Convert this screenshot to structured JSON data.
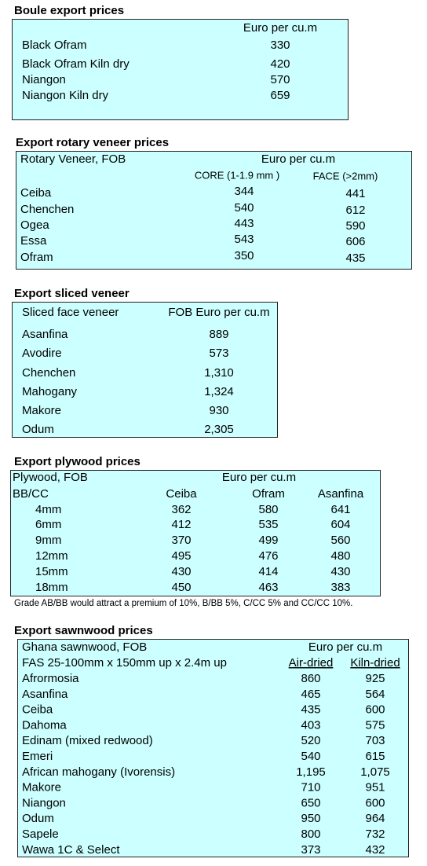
{
  "boule": {
    "title": "Boule export prices",
    "header": "Euro per cu.m",
    "rows": [
      [
        "Black Ofram",
        "330"
      ],
      [
        "Black Ofram  Kiln dry",
        "420"
      ],
      [
        "Niangon",
        "570"
      ],
      [
        "Niangon Kiln dry",
        "659"
      ]
    ]
  },
  "rotary": {
    "title": "Export rotary veneer prices",
    "header": [
      "Rotary Veneer,  FOB",
      "Euro  per cu.m"
    ],
    "columns": [
      "CORE (1-1.9 mm )",
      "FACE (>2mm)"
    ],
    "rows": [
      [
        "Ceiba",
        "344",
        "441"
      ],
      [
        "Chenchen",
        "540",
        "612"
      ],
      [
        "Ogea",
        "443",
        "590"
      ],
      [
        "Essa",
        "543",
        "606"
      ],
      [
        "Ofram",
        "350",
        "435"
      ]
    ]
  },
  "sliced": {
    "title": "Export sliced veneer",
    "header": [
      "Sliced face veneer",
      "FOB Euro per cu.m"
    ],
    "rows": [
      [
        "Asanfina",
        "889"
      ],
      [
        "Avodire",
        "573"
      ],
      [
        "Chenchen",
        "1,310"
      ],
      [
        "Mahogany",
        "1,324"
      ],
      [
        "Makore",
        "930"
      ],
      [
        "Odum",
        "2,305"
      ]
    ]
  },
  "plywood": {
    "title": "Export plywood prices",
    "header": [
      "Plywood, FOB",
      "Euro per cu.m"
    ],
    "columns": [
      "BB/CC",
      "Ceiba",
      "Ofram",
      "Asanfina"
    ],
    "rows": [
      [
        "4mm",
        "362",
        "580",
        "641"
      ],
      [
        "6mm",
        "412",
        "535",
        "604"
      ],
      [
        "9mm",
        "370",
        "499",
        "560"
      ],
      [
        "12mm",
        "495",
        "476",
        "480"
      ],
      [
        "15mm",
        "430",
        "414",
        "430"
      ],
      [
        "18mm",
        "450",
        "463",
        "383"
      ]
    ],
    "note": "Grade AB/BB would attract a premium of 10%, B/BB 5%, C/CC 5% and CC/CC 10%."
  },
  "sawnwood": {
    "title": "Export sawnwood prices",
    "header": [
      "Ghana sawnwood, FOB",
      "Euro per cu.m"
    ],
    "columns": [
      "FAS 25-100mm x 150mm up x 2.4m up",
      "Air-dried",
      "Kiln-dried"
    ],
    "rows": [
      [
        "Afrormosia",
        "860",
        "925"
      ],
      [
        "Asanfina",
        "465",
        "564"
      ],
      [
        "Ceiba",
        "435",
        "600"
      ],
      [
        "Dahoma",
        "403",
        "575"
      ],
      [
        "Edinam (mixed redwood)",
        "520",
        "703"
      ],
      [
        "Emeri",
        "540",
        "615"
      ],
      [
        "African mahogany (Ivorensis)",
        "1,195",
        "1,075"
      ],
      [
        "Makore",
        "710",
        "951"
      ],
      [
        "Niangon",
        "650",
        "600"
      ],
      [
        "Odum",
        "950",
        "964"
      ],
      [
        "Sapele",
        "800",
        "732"
      ],
      [
        "Wawa 1C & Select",
        "373",
        "432"
      ]
    ]
  }
}
